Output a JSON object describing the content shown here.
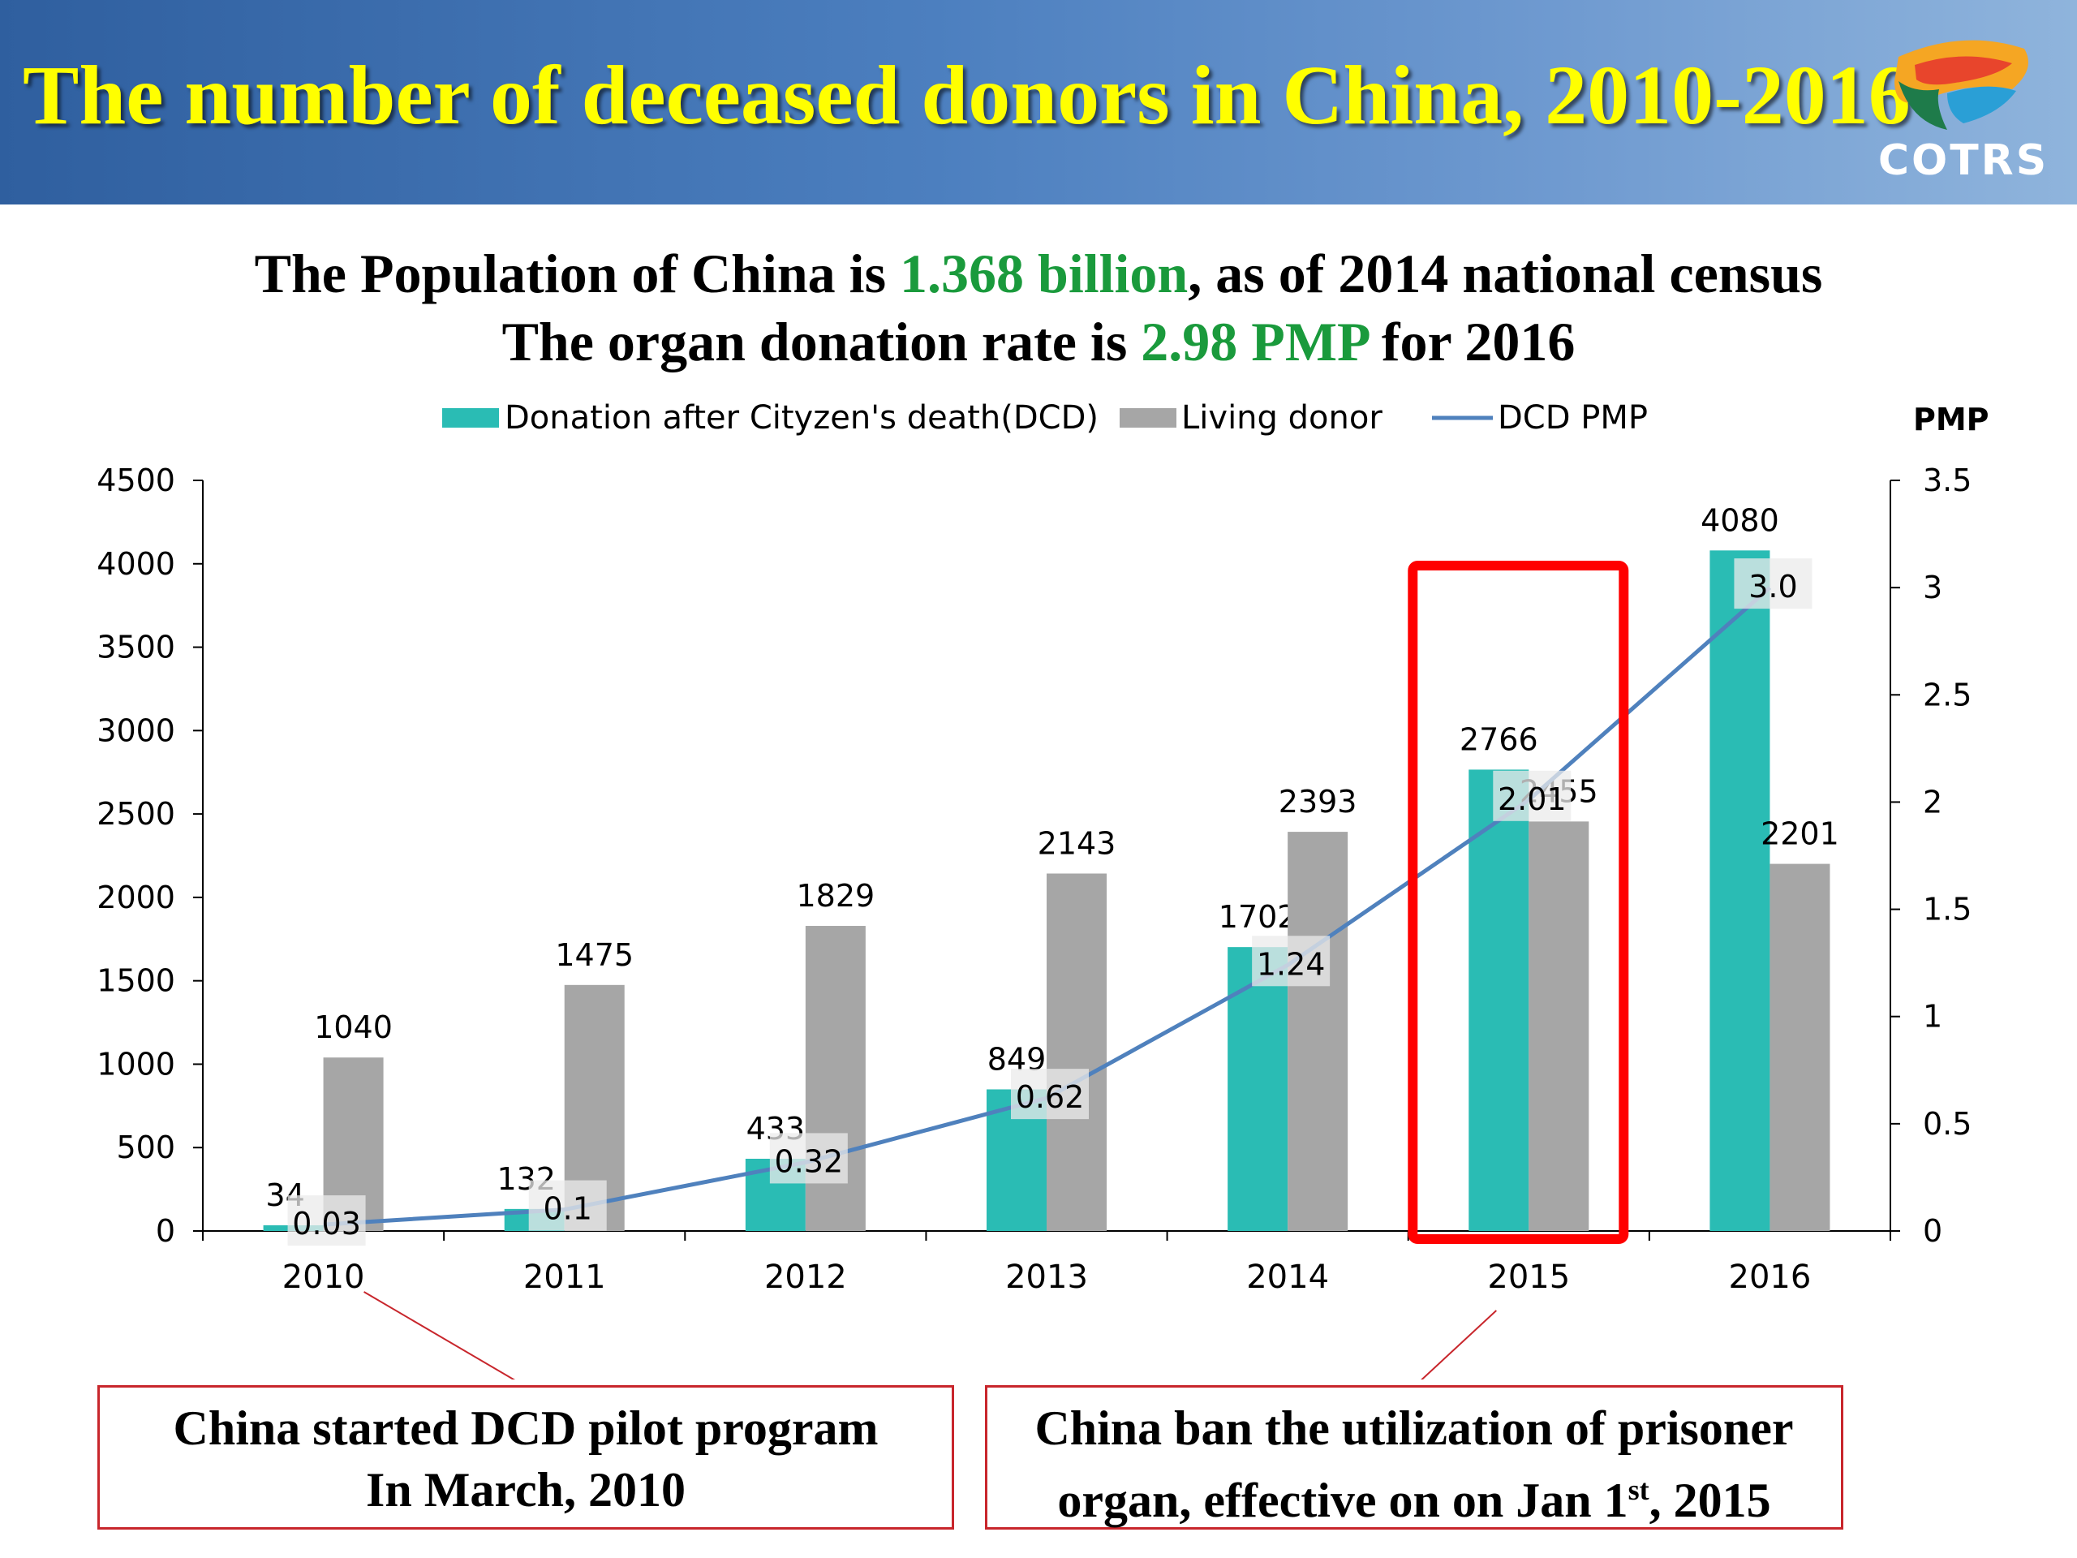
{
  "header": {
    "title": "The number of deceased donors in China, 2010-2016",
    "logo_text": "COTRS"
  },
  "subtitle": {
    "line1_a": "The Population of China is ",
    "line1_b": "1.368 billion",
    "line1_c": ", as of 2014 national census",
    "line2_a": "The organ donation rate is ",
    "line2_b": "2.98 PMP",
    "line2_c": " for 2016"
  },
  "colors": {
    "dcd": "#2abcb4",
    "living": "#a6a6a6",
    "pmp_line": "#4f81bd",
    "highlight": "#ff0000",
    "title": "#ffff00",
    "accent_green": "#1a9a3c"
  },
  "chart_data": {
    "type": "bar",
    "categories": [
      "2010",
      "2011",
      "2012",
      "2013",
      "2014",
      "2015",
      "2016"
    ],
    "series": [
      {
        "name": "Donation after Cityzen's death(DCD)",
        "type": "bar",
        "axis": "left",
        "values": [
          34,
          132,
          433,
          849,
          1702,
          2766,
          4080
        ],
        "labels": [
          "34",
          "132",
          "433",
          "849",
          "1702",
          "2766",
          "4080"
        ]
      },
      {
        "name": "Living donor",
        "type": "bar",
        "axis": "left",
        "values": [
          1040,
          1475,
          1829,
          2143,
          2393,
          2455,
          2201
        ],
        "labels": [
          "1040",
          "1475",
          "1829",
          "2143",
          "2393",
          "2455",
          "2201"
        ]
      },
      {
        "name": "DCD PMP",
        "type": "line",
        "axis": "right",
        "values": [
          0.03,
          0.1,
          0.32,
          0.62,
          1.24,
          2.01,
          3.0
        ],
        "labels": [
          "0.03",
          "0.1",
          "0.32",
          "0.62",
          "1.24",
          "2.01",
          "3.0"
        ]
      }
    ],
    "y_left": {
      "ticks": [
        "0",
        "500",
        "1000",
        "1500",
        "2000",
        "2500",
        "3000",
        "3500",
        "4000",
        "4500"
      ],
      "lim": [
        0,
        4500
      ]
    },
    "y_right": {
      "label": "PMP",
      "ticks": [
        "0",
        "0.5",
        "1",
        "1.5",
        "2",
        "2.5",
        "3",
        "3.5"
      ],
      "lim": [
        0,
        3.5
      ]
    },
    "legend": {
      "position": "top"
    },
    "highlight_category": "2015"
  },
  "callouts": [
    {
      "line1": "China started DCD pilot program",
      "line2": "In March, 2010",
      "points_to": "2010"
    },
    {
      "line1": "China ban the utilization of prisoner",
      "line2a": "organ, effective on on Jan 1",
      "sup": "st",
      "line2b": ", 2015",
      "points_to": "2015"
    }
  ]
}
